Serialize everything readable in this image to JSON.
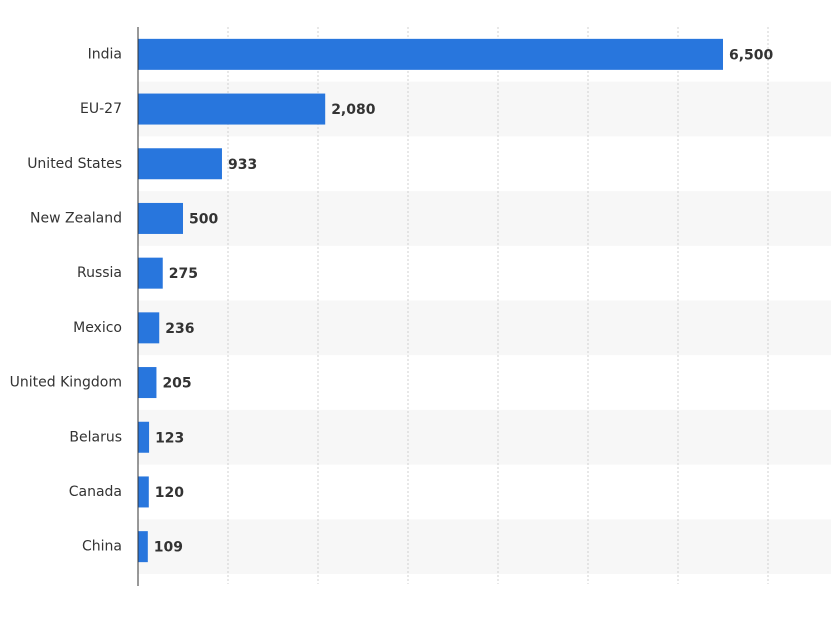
{
  "chart_data": {
    "type": "hbar",
    "categories": [
      "India",
      "EU-27",
      "United States",
      "New Zealand",
      "Russia",
      "Mexico",
      "United Kingdom",
      "Belarus",
      "Canada",
      "China"
    ],
    "values": [
      6500,
      2080,
      933,
      500,
      275,
      236,
      205,
      123,
      120,
      109
    ],
    "value_labels": [
      "6,500",
      "2,080",
      "933",
      "500",
      "275",
      "236",
      "205",
      "123",
      "120",
      "109"
    ],
    "color": "#2876dd",
    "xlim": [
      0,
      7000
    ],
    "xticks": [
      1000,
      2000,
      3000,
      4000,
      5000,
      6000,
      7000
    ],
    "grid": true
  }
}
